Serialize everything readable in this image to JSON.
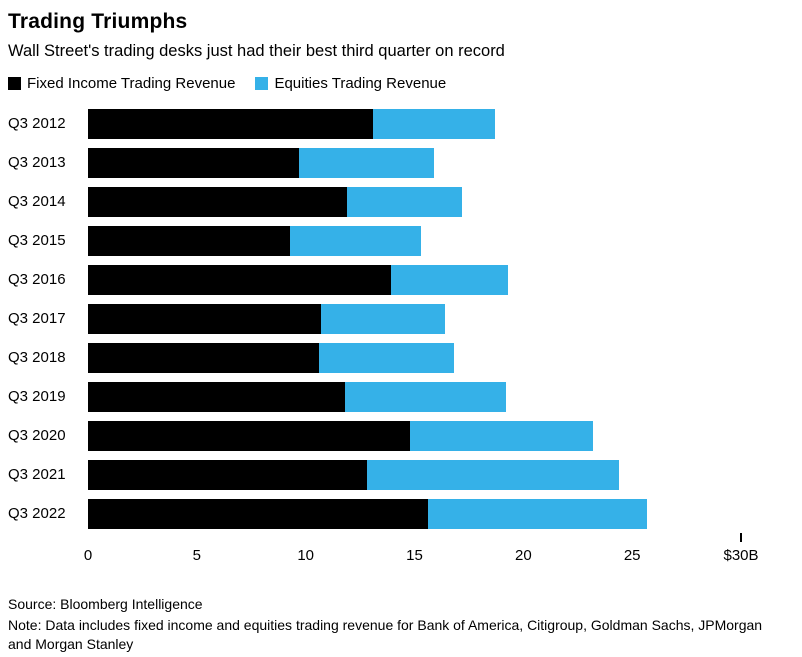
{
  "header": {
    "title": "Trading Triumphs",
    "subtitle": "Wall Street's trading desks just had their best third quarter on record"
  },
  "legend": [
    {
      "label": "Fixed Income Trading Revenue",
      "color": "#000000"
    },
    {
      "label": "Equities Trading Revenue",
      "color": "#35b1e8"
    }
  ],
  "chart_data": {
    "type": "bar",
    "orientation": "horizontal",
    "stacked": true,
    "title": "Trading Triumphs",
    "xlabel": "",
    "ylabel": "",
    "xlim": [
      0,
      30
    ],
    "grid": false,
    "legend_position": "top",
    "categories": [
      "Q3 2012",
      "Q3 2013",
      "Q3 2014",
      "Q3 2015",
      "Q3 2016",
      "Q3 2017",
      "Q3 2018",
      "Q3 2019",
      "Q3 2020",
      "Q3 2021",
      "Q3 2022"
    ],
    "series": [
      {
        "name": "Fixed Income Trading Revenue",
        "color": "#000000",
        "values": [
          13.1,
          9.7,
          11.9,
          9.3,
          13.9,
          10.7,
          10.6,
          11.8,
          14.8,
          12.8,
          15.6
        ]
      },
      {
        "name": "Equities Trading Revenue",
        "color": "#35b1e8",
        "values": [
          5.6,
          6.2,
          5.3,
          6.0,
          5.4,
          5.7,
          6.2,
          7.4,
          8.4,
          11.6,
          10.1
        ]
      }
    ],
    "x_ticks": [
      {
        "value": 0,
        "label": "0"
      },
      {
        "value": 5,
        "label": "5"
      },
      {
        "value": 10,
        "label": "10"
      },
      {
        "value": 15,
        "label": "15"
      },
      {
        "value": 20,
        "label": "20"
      },
      {
        "value": 25,
        "label": "25"
      },
      {
        "value": 30,
        "label": "$30B"
      }
    ]
  },
  "footer": {
    "source": "Source: Bloomberg Intelligence",
    "note": "Note: Data includes fixed income and equities trading revenue for Bank of America, Citigroup, Goldman Sachs, JPMorgan and Morgan Stanley"
  }
}
